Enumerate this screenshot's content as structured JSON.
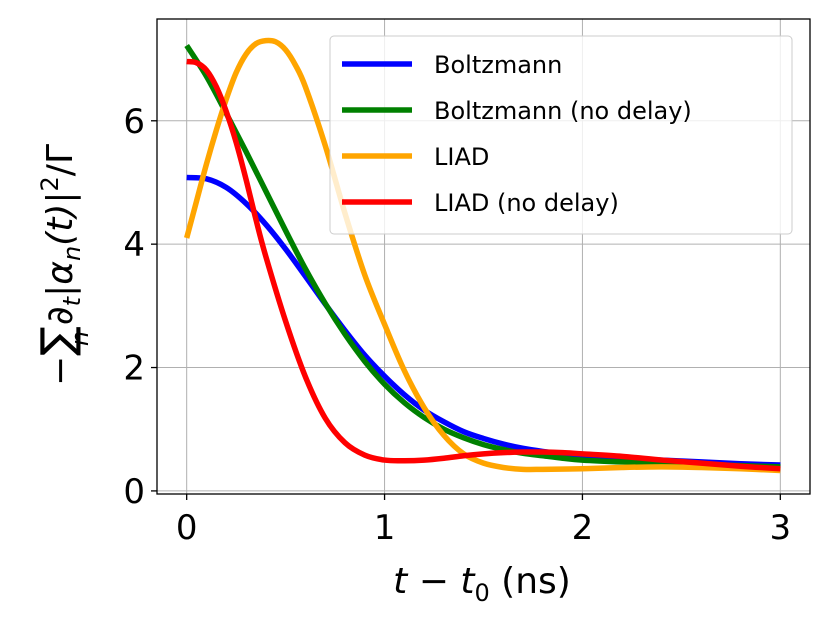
{
  "chart_data": {
    "type": "line",
    "xlabel": {
      "t": "t",
      "minus": " − ",
      "t0_base": "t",
      "t0_sub": "0",
      "unit": " (ns)"
    },
    "ylabel": {
      "minus": "−",
      "sum": "∑",
      "sum_sub": "n",
      "partial": "∂",
      "partial_sub": "t",
      "abs_open": "|",
      "alpha": "α",
      "alpha_sub": "n",
      "arg": "(t)",
      "abs_close": "|",
      "power": "2",
      "over": "/Γ"
    },
    "xlim": [
      -0.15,
      3.15
    ],
    "ylim": [
      -0.05,
      7.65
    ],
    "xticks": [
      0,
      1,
      2,
      3
    ],
    "xtick_labels": [
      "0",
      "1",
      "2",
      "3"
    ],
    "yticks": [
      0,
      2,
      4,
      6
    ],
    "ytick_labels": [
      "0",
      "2",
      "4",
      "6"
    ],
    "grid": true,
    "legend_position": "top-right",
    "series": [
      {
        "name": "Boltzmann",
        "color": "#0000ff",
        "x": [
          0,
          0.1,
          0.2,
          0.3,
          0.4,
          0.5,
          0.6,
          0.7,
          0.8,
          0.9,
          1.0,
          1.1,
          1.2,
          1.3,
          1.4,
          1.5,
          1.6,
          1.7,
          1.8,
          1.9,
          2.0,
          2.2,
          2.4,
          2.6,
          2.8,
          3.0
        ],
        "y": [
          5.08,
          5.06,
          4.92,
          4.66,
          4.32,
          3.92,
          3.48,
          3.03,
          2.6,
          2.2,
          1.86,
          1.56,
          1.31,
          1.12,
          0.96,
          0.85,
          0.76,
          0.69,
          0.64,
          0.6,
          0.57,
          0.53,
          0.5,
          0.47,
          0.44,
          0.42
        ]
      },
      {
        "name": "Boltzmann (no delay)",
        "color": "#008000",
        "x": [
          0,
          0.1,
          0.2,
          0.3,
          0.4,
          0.5,
          0.6,
          0.7,
          0.8,
          0.9,
          1.0,
          1.1,
          1.2,
          1.3,
          1.4,
          1.5,
          1.6,
          1.7,
          1.8,
          1.9,
          2.0,
          2.2,
          2.4,
          2.6,
          2.8,
          3.0
        ],
        "y": [
          7.22,
          6.72,
          6.12,
          5.5,
          4.86,
          4.22,
          3.6,
          3.04,
          2.54,
          2.1,
          1.73,
          1.43,
          1.19,
          1.0,
          0.86,
          0.75,
          0.67,
          0.61,
          0.57,
          0.53,
          0.5,
          0.47,
          0.45,
          0.43,
          0.41,
          0.39
        ]
      },
      {
        "name": "LIAD",
        "color": "#ffa500",
        "x": [
          0,
          0.05,
          0.1,
          0.15,
          0.2,
          0.25,
          0.3,
          0.35,
          0.4,
          0.45,
          0.5,
          0.55,
          0.6,
          0.7,
          0.8,
          0.9,
          1.0,
          1.1,
          1.2,
          1.3,
          1.4,
          1.5,
          1.6,
          1.7,
          1.8,
          2.0,
          2.2,
          2.4,
          2.6,
          2.8,
          3.0
        ],
        "y": [
          4.1,
          4.7,
          5.3,
          5.85,
          6.35,
          6.78,
          7.08,
          7.25,
          7.3,
          7.28,
          7.15,
          6.9,
          6.55,
          5.6,
          4.5,
          3.5,
          2.7,
          1.95,
          1.35,
          0.9,
          0.6,
          0.45,
          0.38,
          0.35,
          0.35,
          0.36,
          0.38,
          0.39,
          0.38,
          0.36,
          0.33
        ]
      },
      {
        "name": "LIAD (no delay)",
        "color": "#ff0000",
        "x": [
          0,
          0.05,
          0.1,
          0.15,
          0.2,
          0.25,
          0.3,
          0.35,
          0.4,
          0.5,
          0.6,
          0.7,
          0.8,
          0.9,
          1.0,
          1.1,
          1.2,
          1.3,
          1.4,
          1.5,
          1.6,
          1.7,
          1.8,
          1.9,
          2.0,
          2.2,
          2.4,
          2.6,
          2.8,
          3.0
        ],
        "y": [
          6.96,
          6.94,
          6.82,
          6.55,
          6.15,
          5.65,
          5.05,
          4.4,
          3.8,
          2.75,
          1.85,
          1.18,
          0.78,
          0.58,
          0.5,
          0.49,
          0.5,
          0.53,
          0.57,
          0.6,
          0.62,
          0.63,
          0.63,
          0.62,
          0.6,
          0.56,
          0.5,
          0.45,
          0.4,
          0.36
        ]
      }
    ]
  }
}
